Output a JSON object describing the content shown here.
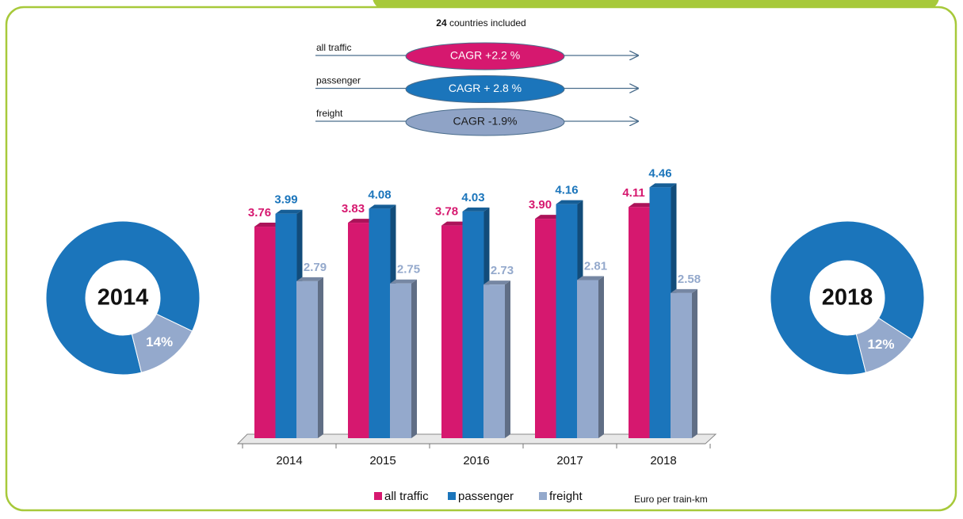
{
  "header": {
    "count": "24",
    "text": "countries included"
  },
  "cagr": [
    {
      "name": "all traffic",
      "label": "CAGR +2.2 %",
      "color": "#d6186f",
      "text_color": "#ffffff"
    },
    {
      "name": "passenger",
      "label": "CAGR + 2.8 %",
      "color": "#1b75bb",
      "text_color": "#ffffff"
    },
    {
      "name": "freight",
      "label": "CAGR -1.9%",
      "color": "#8fa3c6",
      "text_color": "#1a1a1a"
    }
  ],
  "chart_data": [
    {
      "type": "bar",
      "categories": [
        "2014",
        "2015",
        "2016",
        "2017",
        "2018"
      ],
      "series": [
        {
          "name": "all traffic",
          "color": "#d6186f",
          "values": [
            3.76,
            3.83,
            3.78,
            3.9,
            4.11
          ],
          "value_labels": [
            "3.76",
            "3.83",
            "3.78",
            "3.90",
            "4.11"
          ]
        },
        {
          "name": "passenger",
          "color": "#1b75bb",
          "values": [
            3.99,
            4.08,
            4.03,
            4.16,
            4.46
          ],
          "value_labels": [
            "3.99",
            "4.08",
            "4.03",
            "4.16",
            "4.46"
          ]
        },
        {
          "name": "freight",
          "color": "#94a9cc",
          "values": [
            2.79,
            2.75,
            2.73,
            2.81,
            2.58
          ],
          "value_labels": [
            "2.79",
            "2.75",
            "2.73",
            "2.81",
            "2.58"
          ]
        }
      ],
      "ylim": [
        0,
        4.6
      ],
      "unit_label": "Euro per train-km",
      "legend": "bottom"
    },
    {
      "type": "pie",
      "title": "2014",
      "values": [
        86,
        14
      ],
      "value_labels": [
        "86%",
        "14%"
      ],
      "colors": [
        "#1b75bb",
        "#94a9cc"
      ]
    },
    {
      "type": "pie",
      "title": "2018",
      "values": [
        88,
        12
      ],
      "value_labels": [
        "88%",
        "12%"
      ],
      "colors": [
        "#1b75bb",
        "#94a9cc"
      ]
    }
  ]
}
